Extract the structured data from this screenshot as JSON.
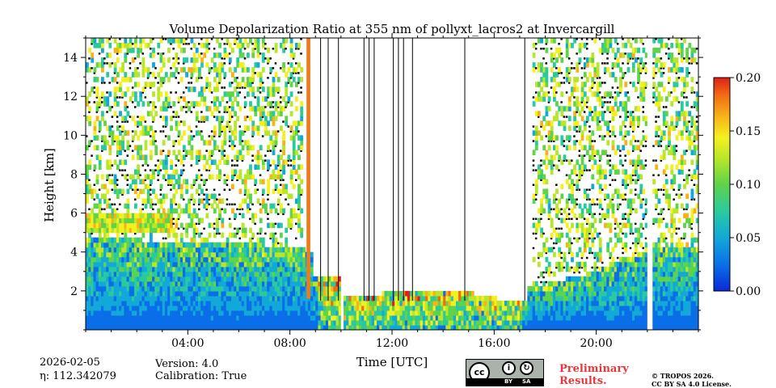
{
  "chart_data": {
    "type": "heatmap",
    "title": "Volume Depolarization Ratio at 355 nm of pollyxt_lacros2 at Invercargill",
    "xlabel": "Time [UTC]",
    "ylabel": "Height [km]",
    "xlim": [
      0,
      24
    ],
    "ylim": [
      0,
      15
    ],
    "x_ticks": [
      4,
      8,
      12,
      16,
      20
    ],
    "x_tick_labels": [
      "04:00",
      "08:00",
      "12:00",
      "16:00",
      "20:00"
    ],
    "y_ticks": [
      2,
      4,
      6,
      8,
      10,
      12,
      14
    ],
    "y_tick_labels": [
      "2",
      "4",
      "6",
      "8",
      "10",
      "12",
      "14"
    ],
    "colorbar": {
      "range": [
        0.0,
        0.2
      ],
      "ticks": [
        0.0,
        0.05,
        0.1,
        0.15,
        0.2
      ],
      "tick_labels": [
        "0.00",
        "0.05",
        "0.10",
        "0.15",
        "0.20"
      ],
      "colormap": [
        "#0a2ad6",
        "#0a6ee8",
        "#12a8d8",
        "#2ac9a0",
        "#5fd34a",
        "#b7e62a",
        "#f4f020",
        "#f7b21a",
        "#f06a14",
        "#e0201a"
      ]
    },
    "regions": [
      {
        "name": "night noisy high-level signal",
        "t_start": 0.0,
        "t_end": 8.5,
        "noise_top_km": 15,
        "boundary_layer_top_km": 4.5
      },
      {
        "name": "aerosol layer",
        "t_start": 0.0,
        "t_end": 3.4,
        "base_km": 5.0,
        "top_km": 6.0
      },
      {
        "name": "high depolarization spike",
        "t_start": 8.65,
        "t_end": 8.8,
        "height_km": 15
      },
      {
        "name": "daytime, signal absent aloft",
        "t_start": 8.8,
        "t_end": 17.2,
        "signal_top_km": 2.5
      },
      {
        "name": "evening noisy signal",
        "t_start": 17.5,
        "t_end": 22.0,
        "noise_top_km": 15,
        "boundary_layer_top_km": 2.5
      },
      {
        "name": "after data gap",
        "t_start": 22.2,
        "t_end": 24.0,
        "noise_top_km": 15,
        "boundary_layer_top_km": 4.0
      }
    ],
    "data_gaps": [
      {
        "t_start": 10.0,
        "t_end": 10.1
      },
      {
        "t_start": 22.0,
        "t_end": 22.2
      }
    ],
    "profile_markers_hours": [
      9.2,
      9.5,
      9.9,
      10.9,
      11.1,
      11.3,
      12.05,
      12.25,
      12.45,
      12.8,
      14.85,
      17.2
    ]
  },
  "metadata": {
    "date": "2026-02-05",
    "eta": "η: 112.342079",
    "version": "Version: 4.0",
    "calibration": "Calibration: True"
  },
  "license_badge": {
    "cc": "cc",
    "by_icon": "person-icon",
    "sa_icon": "share-alike-icon",
    "by": "BY",
    "sa": "SA"
  },
  "preliminary": {
    "line1": "Preliminary",
    "line2": "Results.",
    "color": "#e8383d"
  },
  "copyright": {
    "line1": "© TROPOS 2026.",
    "line2": "CC BY SA 4.0 License."
  }
}
